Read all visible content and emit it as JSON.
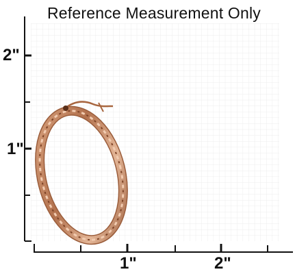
{
  "title": "Reference Measurement Only",
  "axes": {
    "y_labels": [
      "1\"",
      "2\""
    ],
    "x_labels": [
      "1\"",
      "2\""
    ]
  },
  "image": {
    "subject": "oval twisted hoop earring",
    "metal_color": "#b87a55"
  },
  "colors": {
    "grid": "#e6e6e6",
    "axis": "#111111"
  }
}
